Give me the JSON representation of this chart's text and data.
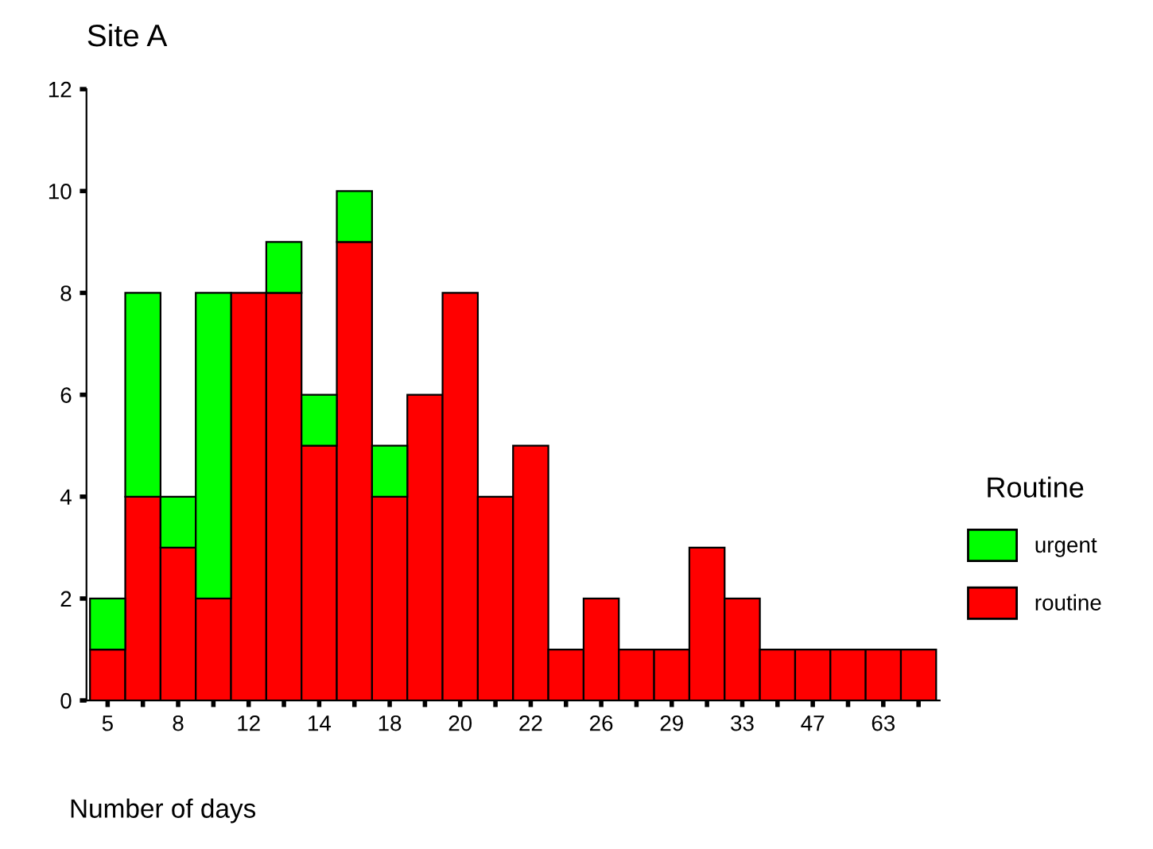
{
  "chart_data": {
    "type": "bar",
    "title": "Site A",
    "xlabel": "Number of days",
    "legend_title": "Routine",
    "stacked": true,
    "legend": "right",
    "grid": false,
    "categories": [
      "5",
      null,
      "8",
      null,
      "12",
      null,
      "14",
      null,
      "18",
      null,
      "20",
      null,
      "22",
      null,
      "26",
      null,
      "29",
      null,
      "33",
      null,
      "47",
      null,
      "63",
      null
    ],
    "series": [
      {
        "name": "routine",
        "color": "#ff0000",
        "values": [
          1,
          4,
          3,
          2,
          8,
          8,
          5,
          9,
          4,
          6,
          8,
          4,
          5,
          1,
          2,
          1,
          1,
          3,
          2,
          1,
          1,
          1,
          1,
          1
        ]
      },
      {
        "name": "urgent",
        "color": "#00ff00",
        "values": [
          1,
          4,
          1,
          6,
          null,
          1,
          1,
          1,
          1,
          null,
          null,
          null,
          null,
          null,
          null,
          null,
          null,
          null,
          null,
          null,
          null,
          null,
          null,
          null
        ]
      }
    ],
    "ylim": [
      0,
      12
    ],
    "yticks": [
      0,
      2,
      4,
      6,
      8,
      10,
      12
    ]
  }
}
